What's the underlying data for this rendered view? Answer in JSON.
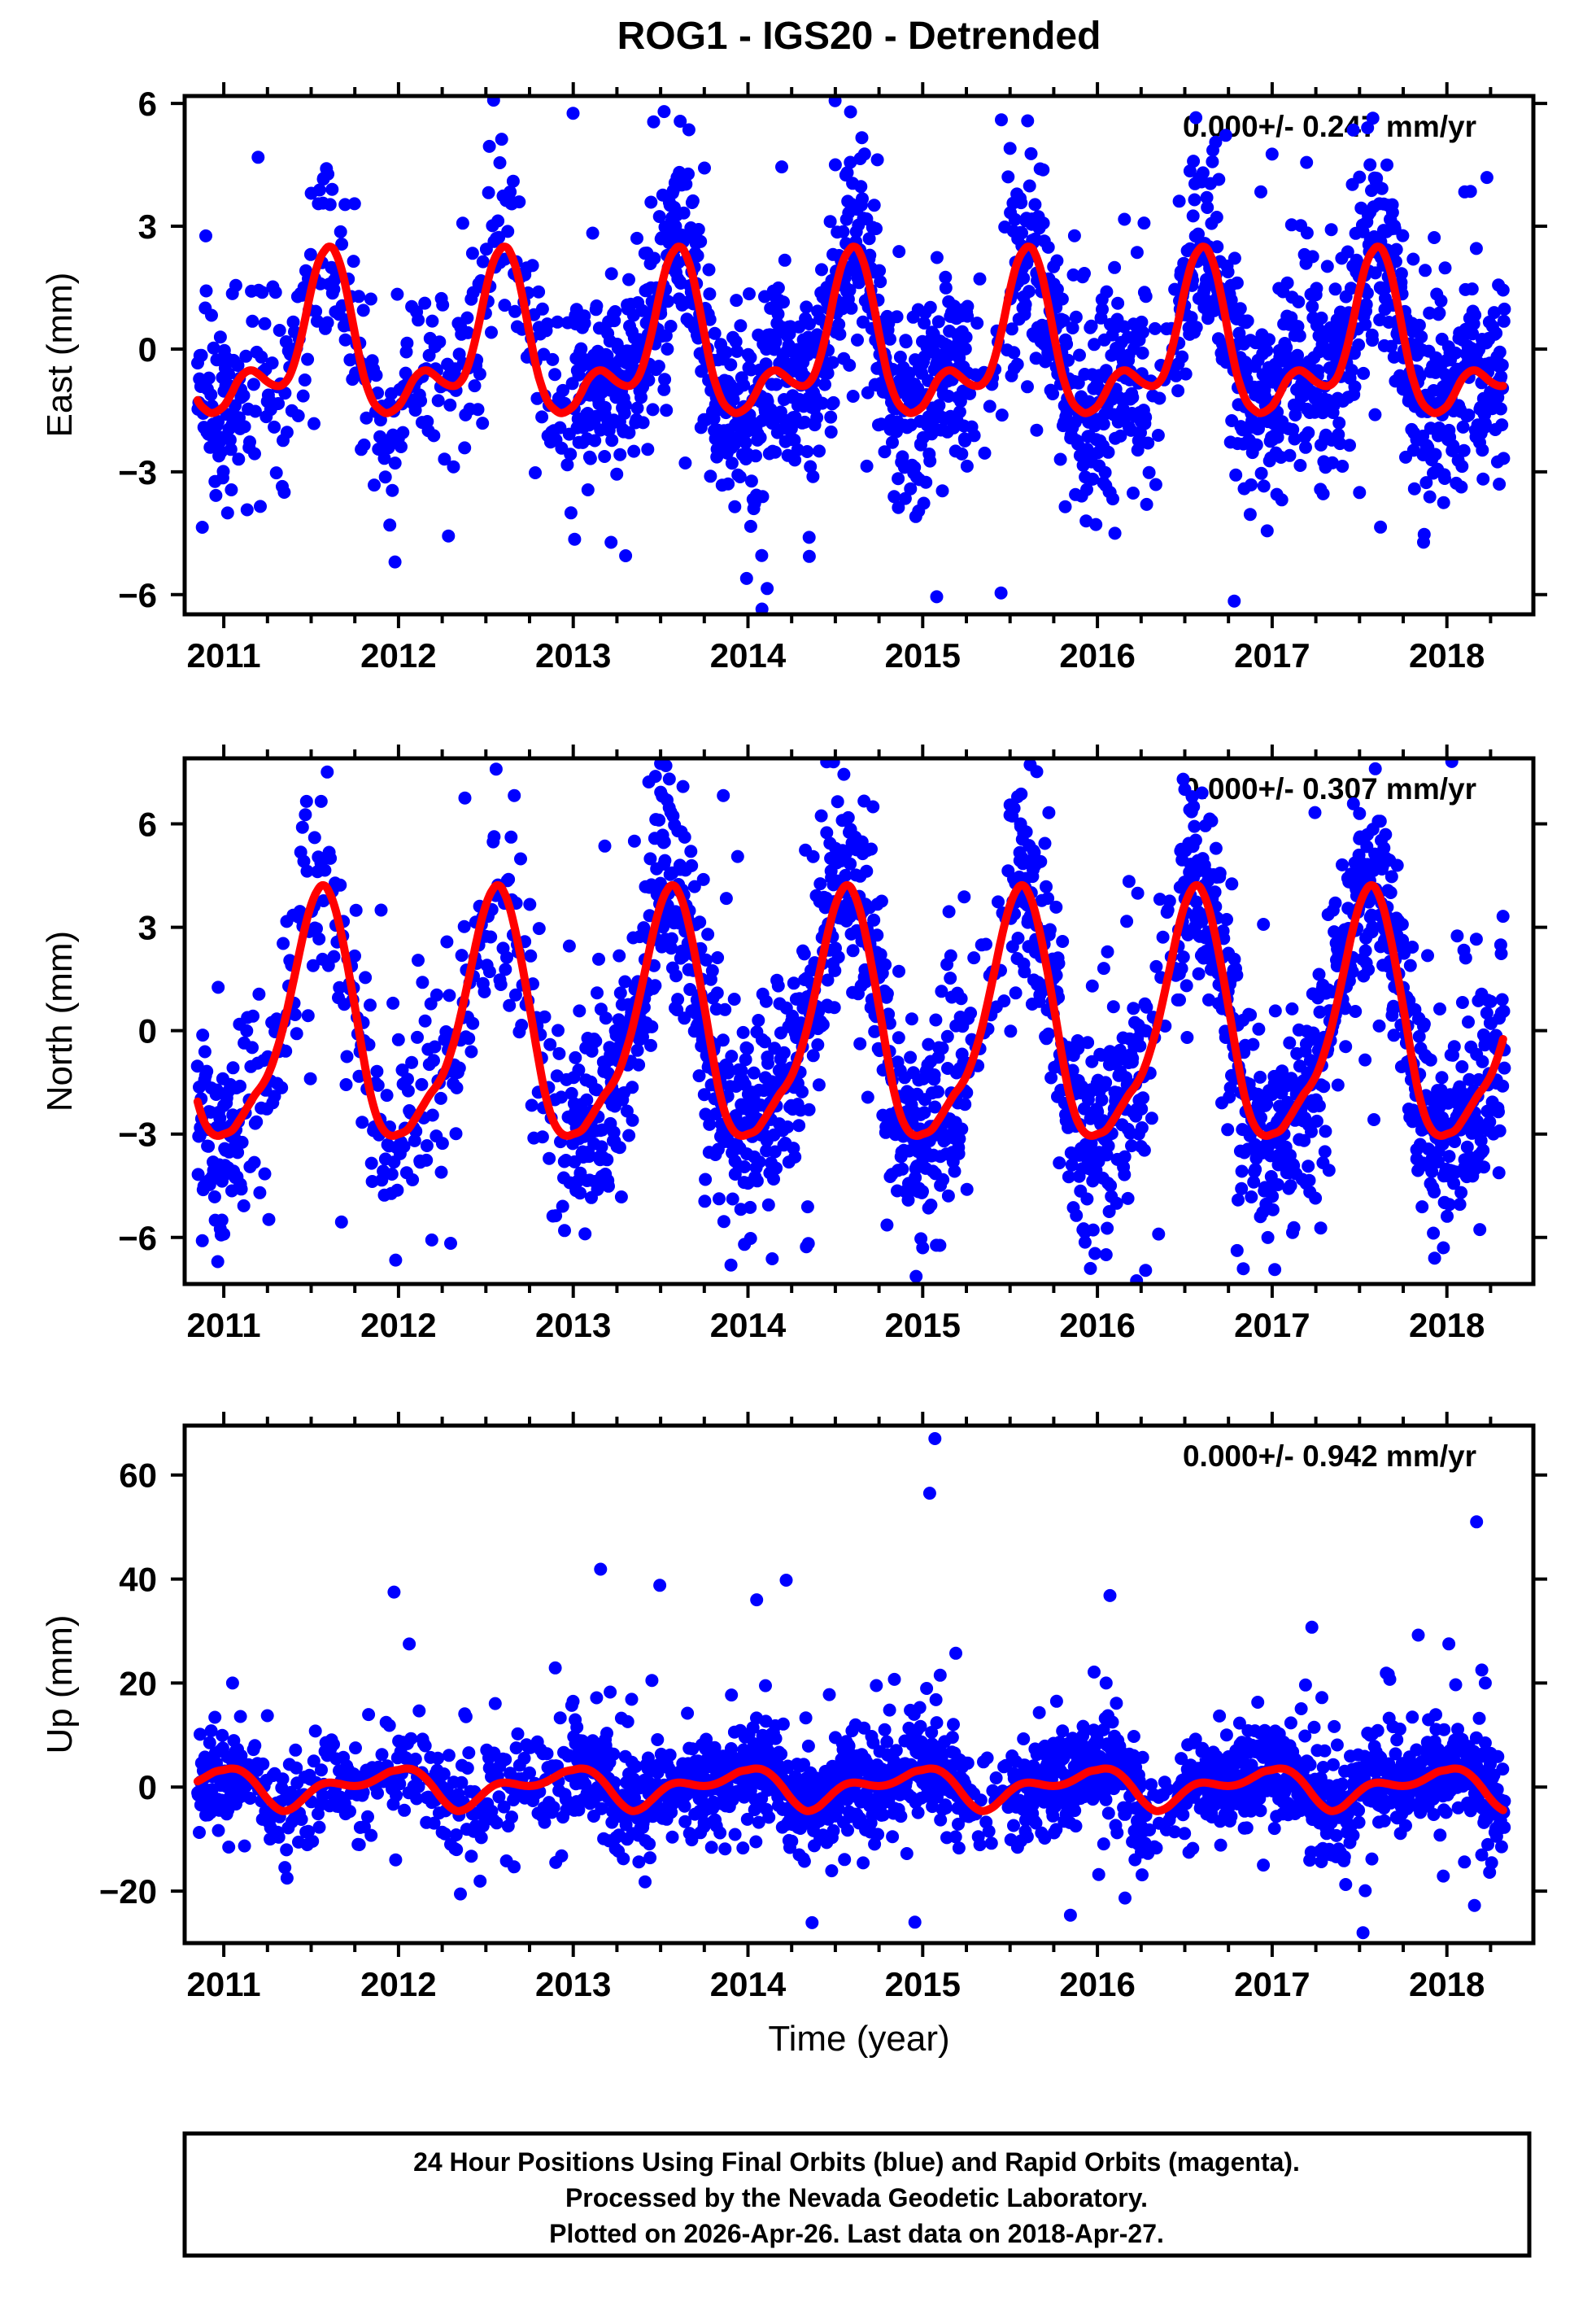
{
  "figure": {
    "title": "ROG1 - IGS20 - Detrended",
    "xlabel": "Time (year)",
    "station": "ROG1",
    "reference_frame": "IGS20",
    "colors": {
      "points": "#0000ff",
      "model": "#ff0000",
      "frame": "#000000",
      "background": "#ffffff"
    }
  },
  "caption": {
    "lines": [
      "24 Hour Positions Using Final Orbits (blue) and Rapid Orbits (magenta).",
      "Processed by the Nevada Geodetic Laboratory.",
      "Plotted on 2026-Apr-26. Last data on 2018-Apr-27."
    ]
  },
  "chart_data": {
    "type": "scatter",
    "description": "Detrended daily GPS position time series (blue dots) with seasonal model fit (red curve), three stacked panels East/North/Up",
    "x_axis": {
      "label": "Time (year)",
      "xlim": [
        2010.776,
        2018.495
      ],
      "ticks": [
        2011,
        2012,
        2013,
        2014,
        2015,
        2016,
        2017,
        2018
      ],
      "minor_tick_interval": 0.25,
      "data_start": 2010.85,
      "data_end": 2018.33
    },
    "sampling_segments": [
      {
        "start": 2010.85,
        "end": 2011.1,
        "interval_days": 1.2
      },
      {
        "start": 2011.1,
        "end": 2013.0,
        "interval_days": 2.3
      },
      {
        "start": 2013.0,
        "end": 2015.26,
        "interval_days": 1.0
      },
      {
        "start": 2015.26,
        "end": 2015.5,
        "interval_days": 4.0
      },
      {
        "start": 2015.5,
        "end": 2016.28,
        "interval_days": 1.0
      },
      {
        "start": 2016.28,
        "end": 2016.46,
        "interval_days": 3.5
      },
      {
        "start": 2016.46,
        "end": 2018.33,
        "interval_days": 1.0
      }
    ],
    "panels": [
      {
        "id": "east",
        "ylabel": "East (mm)",
        "annotation": "0.000+/- 0.247 mm/yr",
        "ylim": [
          -6.48,
          6.18
        ],
        "yticks": [
          6,
          3,
          0,
          -3,
          -6
        ],
        "scatter_sigma_mm": 1.2,
        "outlier_fraction": 0.09,
        "outlier_scale": 2.0,
        "seed": 42,
        "seasonal_model_mm": [
          [
            0.0,
            -1.4
          ],
          [
            0.04,
            -1.12
          ],
          [
            0.08,
            -0.78
          ],
          [
            0.12,
            -0.58
          ],
          [
            0.16,
            -0.52
          ],
          [
            0.2,
            -0.62
          ],
          [
            0.25,
            -0.8
          ],
          [
            0.3,
            -0.9
          ],
          [
            0.34,
            -0.86
          ],
          [
            0.38,
            -0.62
          ],
          [
            0.42,
            -0.1
          ],
          [
            0.46,
            0.62
          ],
          [
            0.5,
            1.45
          ],
          [
            0.54,
            2.1
          ],
          [
            0.58,
            2.42
          ],
          [
            0.61,
            2.5
          ],
          [
            0.64,
            2.35
          ],
          [
            0.68,
            1.85
          ],
          [
            0.72,
            1.05
          ],
          [
            0.76,
            0.15
          ],
          [
            0.8,
            -0.65
          ],
          [
            0.85,
            -1.25
          ],
          [
            0.9,
            -1.5
          ],
          [
            0.94,
            -1.56
          ],
          [
            1.0,
            -1.4
          ]
        ],
        "extreme_points": [
          [
            2011.57,
            4.15
          ],
          [
            2011.62,
            3.9
          ],
          [
            2012.52,
            4.95
          ],
          [
            2012.58,
            4.55
          ],
          [
            2013.46,
            5.55
          ],
          [
            2013.52,
            5.8
          ],
          [
            2014.5,
            4.5
          ],
          [
            2014.56,
            4.25
          ],
          [
            2015.45,
            5.6
          ],
          [
            2015.5,
            4.9
          ],
          [
            2016.53,
            4.35
          ],
          [
            2016.6,
            4.1
          ],
          [
            2017.5,
            4.2
          ],
          [
            2017.56,
            4.5
          ],
          [
            2011.95,
            -4.3
          ],
          [
            2011.98,
            -5.2
          ],
          [
            2013.3,
            -5.05
          ],
          [
            2014.08,
            -6.35
          ],
          [
            2014.11,
            -5.85
          ],
          [
            2014.35,
            -4.6
          ],
          [
            2015.08,
            -6.05
          ],
          [
            2016.1,
            -4.5
          ],
          [
            2017.62,
            -4.35
          ],
          [
            2018.3,
            -3.3
          ]
        ]
      },
      {
        "id": "north",
        "ylabel": "North (mm)",
        "annotation": "0.000+/- 0.307 mm/yr",
        "ylim": [
          -7.35,
          7.9
        ],
        "yticks": [
          6,
          3,
          0,
          -3,
          -6
        ],
        "scatter_sigma_mm": 1.5,
        "outlier_fraction": 0.09,
        "outlier_scale": 1.9,
        "seed": 1337,
        "seasonal_model_mm": [
          [
            0.0,
            -3.0
          ],
          [
            0.05,
            -2.88
          ],
          [
            0.1,
            -2.52
          ],
          [
            0.14,
            -2.18
          ],
          [
            0.18,
            -1.85
          ],
          [
            0.22,
            -1.58
          ],
          [
            0.26,
            -1.2
          ],
          [
            0.3,
            -0.62
          ],
          [
            0.34,
            0.1
          ],
          [
            0.38,
            1.0
          ],
          [
            0.42,
            1.95
          ],
          [
            0.46,
            2.9
          ],
          [
            0.5,
            3.65
          ],
          [
            0.54,
            4.1
          ],
          [
            0.57,
            4.22
          ],
          [
            0.6,
            4.05
          ],
          [
            0.64,
            3.5
          ],
          [
            0.68,
            2.62
          ],
          [
            0.72,
            1.55
          ],
          [
            0.76,
            0.4
          ],
          [
            0.8,
            -0.8
          ],
          [
            0.84,
            -1.85
          ],
          [
            0.88,
            -2.55
          ],
          [
            0.92,
            -2.92
          ],
          [
            0.96,
            -3.05
          ],
          [
            1.0,
            -3.0
          ]
        ],
        "extreme_points": [
          [
            2010.98,
            -5.75
          ],
          [
            2011.0,
            -5.9
          ],
          [
            2011.45,
            5.9
          ],
          [
            2011.52,
            5.6
          ],
          [
            2012.38,
            6.75
          ],
          [
            2013.35,
            5.5
          ],
          [
            2013.5,
            7.75
          ],
          [
            2013.55,
            7.3
          ],
          [
            2014.45,
            7.8
          ],
          [
            2014.49,
            7.8
          ],
          [
            2014.54,
            6.1
          ],
          [
            2015.5,
            6.55
          ],
          [
            2015.56,
            6.0
          ],
          [
            2016.5,
            7.0
          ],
          [
            2016.55,
            6.5
          ],
          [
            2017.5,
            6.3
          ],
          [
            2012.95,
            -5.8
          ],
          [
            2013.98,
            -6.2
          ],
          [
            2015.0,
            -6.3
          ],
          [
            2015.96,
            -6.9
          ],
          [
            2016.05,
            -6.5
          ],
          [
            2016.35,
            -5.9
          ],
          [
            2017.93,
            -6.6
          ],
          [
            2017.98,
            -6.3
          ]
        ]
      },
      {
        "id": "up",
        "ylabel": "Up (mm)",
        "annotation": "0.000+/- 0.942 mm/yr",
        "ylim": [
          -30.0,
          69.5
        ],
        "yticks": [
          60,
          40,
          20,
          0,
          -20
        ],
        "scatter_sigma_mm": 4.6,
        "outlier_fraction": 0.1,
        "outlier_scale": 2.0,
        "seed": 2024,
        "seasonal_model_mm": [
          [
            0.0,
            3.3
          ],
          [
            0.04,
            3.55
          ],
          [
            0.08,
            3.4
          ],
          [
            0.12,
            2.7
          ],
          [
            0.16,
            1.5
          ],
          [
            0.2,
            -0.1
          ],
          [
            0.24,
            -1.9
          ],
          [
            0.28,
            -3.4
          ],
          [
            0.32,
            -4.4
          ],
          [
            0.35,
            -4.6
          ],
          [
            0.4,
            -3.9
          ],
          [
            0.45,
            -2.4
          ],
          [
            0.5,
            -0.8
          ],
          [
            0.55,
            0.4
          ],
          [
            0.6,
            0.85
          ],
          [
            0.65,
            0.7
          ],
          [
            0.7,
            0.35
          ],
          [
            0.75,
            0.2
          ],
          [
            0.8,
            0.45
          ],
          [
            0.85,
            1.1
          ],
          [
            0.9,
            2.05
          ],
          [
            0.95,
            2.95
          ],
          [
            1.0,
            3.3
          ]
        ],
        "extreme_points": [
          [
            2011.05,
            20.0
          ],
          [
            2013.45,
            20.5
          ],
          [
            2014.05,
            36.0
          ],
          [
            2014.1,
            19.5
          ],
          [
            2015.04,
            56.5
          ],
          [
            2015.07,
            67.0
          ],
          [
            2015.1,
            21.5
          ],
          [
            2016.05,
            20.0
          ],
          [
            2017.52,
            -28.0
          ],
          [
            2018.17,
            51.0
          ],
          [
            2018.2,
            22.5
          ],
          [
            2018.22,
            20.0
          ],
          [
            2012.9,
            -14.5
          ],
          [
            2016.95,
            -15.0
          ]
        ]
      }
    ]
  }
}
